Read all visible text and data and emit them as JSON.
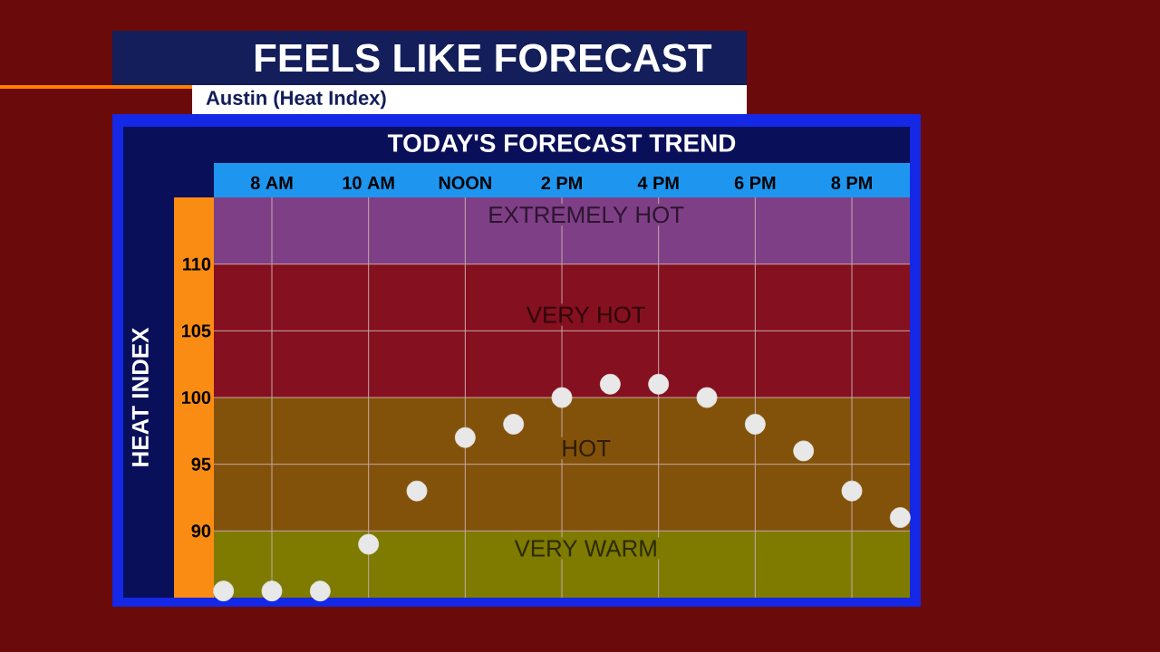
{
  "chart_data": {
    "type": "scatter",
    "title": "FEELS LIKE FORECAST",
    "subtitle": "Austin (Heat Index)",
    "annotations": [
      "TODAY'S FORECAST TREND"
    ],
    "ylabel": "HEAT INDEX",
    "categories": [
      null,
      "8 AM",
      null,
      "10 AM",
      null,
      "NOON",
      null,
      "2 PM",
      null,
      "4 PM",
      null,
      "6 PM",
      null,
      "8 PM",
      null
    ],
    "series": [
      {
        "color": "#e8e8e8",
        "values": [
          85.5,
          85.5,
          85.5,
          89,
          93,
          97,
          98,
          100,
          101,
          101,
          100,
          98,
          96,
          93,
          91
        ]
      }
    ],
    "ylim": [
      85,
      115
    ],
    "yticks": [
      90,
      95,
      100,
      105,
      110
    ],
    "bands": [
      {
        "axis": "y",
        "from": 85,
        "to": 90,
        "label": "VERY WARM",
        "color": "#7f7a00"
      },
      {
        "axis": "y",
        "from": 90,
        "to": 100,
        "label": "HOT",
        "color": "#83520a"
      },
      {
        "axis": "y",
        "from": 100,
        "to": 110,
        "label": "VERY HOT",
        "color": "#85101f"
      },
      {
        "axis": "y",
        "from": 110,
        "to": 115,
        "label": "EXTREMELY HOT",
        "color": "#7f3f86"
      }
    ],
    "grid": true,
    "marker": "circle"
  }
}
